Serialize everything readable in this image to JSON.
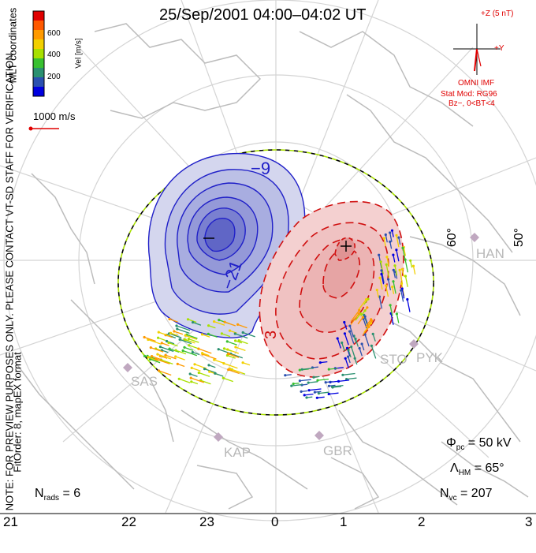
{
  "title": "25/Sep/2001 04:00–04:02 UT",
  "coordinates_label": "MLT coordinates",
  "colorbar": {
    "unit_label": "Vel [m/s]",
    "ticks": [
      "600",
      "400",
      "200"
    ],
    "colors": [
      "#e00000",
      "#ff5a00",
      "#ff9a00",
      "#f2d000",
      "#a8e000",
      "#38c030",
      "#2a9070",
      "#2a50b0",
      "#0000e0"
    ]
  },
  "velocity_scale": {
    "label": "1000 m/s",
    "color": "#e00000"
  },
  "imf": {
    "z_label": "+Z (5 nT)",
    "y_label": "+Y",
    "source": "OMNI IMF",
    "model": "Stat Mod: RG96",
    "condition": "Bz−, 0<BT<4",
    "color": "#e00000"
  },
  "watermark": "NOTE: FOR PREVIEW PURPOSES ONLY. PLEASE CONTACT VT-SD STAFF FOR VERIFICATION.",
  "fit_info": "FitOrder: 8, mapEX format",
  "lat_labels": [
    "60°",
    "50°"
  ],
  "contours": {
    "negative_labels": [
      "−9",
      "−21"
    ],
    "positive_label": "3",
    "negative_color": "#2020c8",
    "positive_color": "#d01010",
    "negative_fill": "#c8cce8",
    "positive_fill": "#f2c8c8"
  },
  "stations": [
    "HAN",
    "STO",
    "PYK",
    "SAS",
    "KAP",
    "GBR"
  ],
  "stats": {
    "phi_symbol": "Φ",
    "phi_sub": "pc",
    "phi_value": "= 50 kV",
    "lambda_symbol": "Λ",
    "lambda_sub": "HM",
    "lambda_value": "= 65°",
    "n_symbol": "N",
    "nvc_sub": "vc",
    "nvc_value": "= 207",
    "nrads_sub": "rads",
    "nrads_value": "= 6"
  },
  "mlt_ticks": [
    "21",
    "22",
    "23",
    "0",
    "1",
    "2",
    "3"
  ]
}
